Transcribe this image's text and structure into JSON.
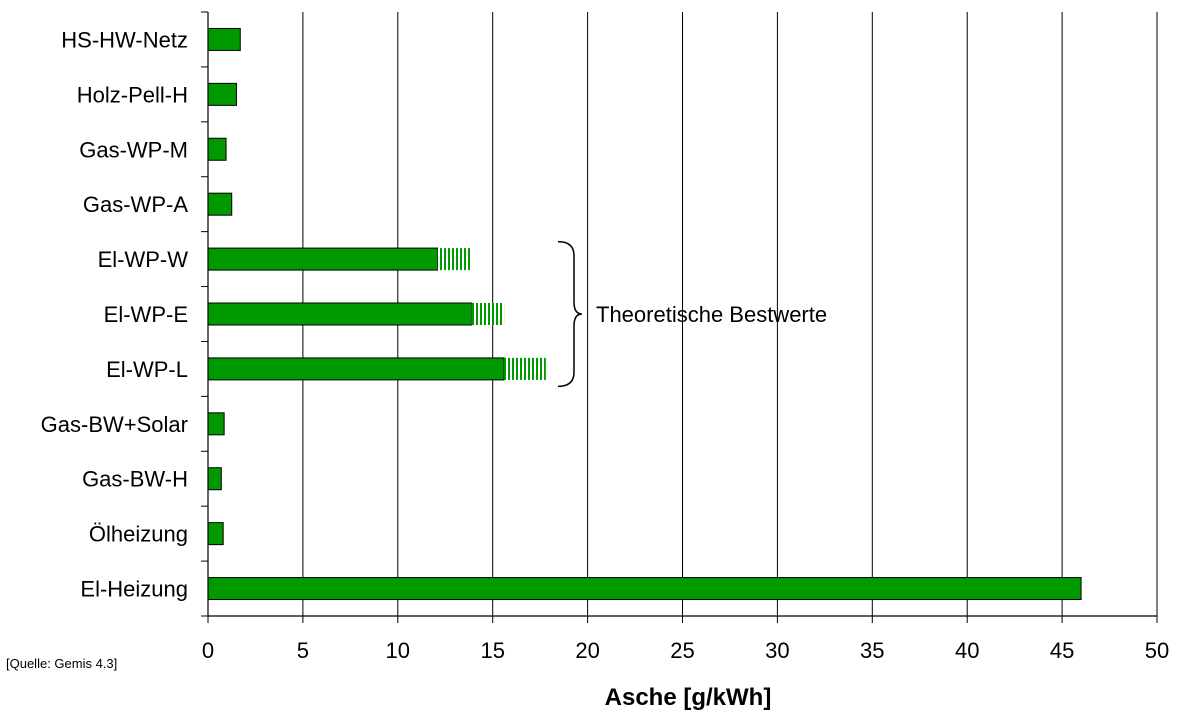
{
  "source_note": "[Quelle: Gemis 4.3]",
  "chart_data": {
    "type": "bar",
    "orientation": "horizontal",
    "xlabel": "Asche [g/kWh]",
    "xlim": [
      0,
      50
    ],
    "xticks": [
      0,
      5,
      10,
      15,
      20,
      25,
      30,
      35,
      40,
      45,
      50
    ],
    "grid": "vertical",
    "categories": [
      "HS-HW-Netz",
      "Holz-Pell-H",
      "Gas-WP-M",
      "Gas-WP-A",
      "El-WP-W",
      "El-WP-E",
      "El-WP-L",
      "Gas-BW+Solar",
      "Gas-BW-H",
      "Ölheizung",
      "El-Heizung"
    ],
    "series": [
      {
        "values": [
          1.7,
          1.5,
          0.95,
          1.25,
          12.1,
          13.9,
          15.6,
          0.85,
          0.7,
          0.8,
          46.0
        ]
      },
      {
        "values": [
          0,
          0,
          0,
          0,
          1.8,
          1.7,
          2.2,
          0,
          0,
          0,
          0
        ]
      }
    ],
    "annotation": {
      "text": "Theoretische Bestwerte",
      "brackets": [
        "El-WP-W",
        "El-WP-E",
        "El-WP-L"
      ]
    },
    "colors": {
      "bar": "#009900",
      "hatch": "#009900",
      "edge": "#000000"
    }
  }
}
